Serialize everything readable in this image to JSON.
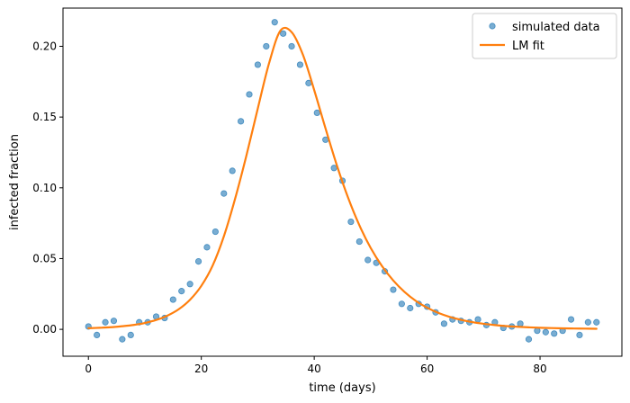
{
  "chart_data": {
    "type": "scatter",
    "xlabel": "time (days)",
    "ylabel": "infected fraction",
    "xlim": [
      -4.5,
      94.5
    ],
    "ylim": [
      -0.019,
      0.227
    ],
    "xticks": [
      0,
      20,
      40,
      60,
      80
    ],
    "yticks": [
      0.0,
      0.05,
      0.1,
      0.15,
      0.2
    ],
    "ytick_labels": [
      "0.00",
      "0.05",
      "0.10",
      "0.15",
      "0.20"
    ],
    "legend_position": "upper right",
    "grid": false,
    "colors": {
      "scatter": "#1f77b4",
      "fit": "#ff7f0e"
    },
    "series": [
      {
        "name": "simulated data",
        "kind": "scatter",
        "x": [
          0.0,
          1.5,
          3.0,
          4.5,
          6.0,
          7.5,
          9.0,
          10.5,
          12.0,
          13.5,
          15.0,
          16.5,
          18.0,
          19.5,
          21.0,
          22.5,
          24.0,
          25.5,
          27.0,
          28.5,
          30.0,
          31.5,
          33.0,
          34.5,
          36.0,
          37.5,
          39.0,
          40.5,
          42.0,
          43.5,
          45.0,
          46.5,
          48.0,
          49.5,
          51.0,
          52.5,
          54.0,
          55.5,
          57.0,
          58.5,
          60.0,
          61.5,
          63.0,
          64.5,
          66.0,
          67.5,
          69.0,
          70.5,
          72.0,
          73.5,
          75.0,
          76.5,
          78.0,
          79.5,
          81.0,
          82.5,
          84.0,
          85.5,
          87.0,
          88.5,
          90.0
        ],
        "y": [
          0.002,
          -0.004,
          0.005,
          0.006,
          -0.007,
          -0.004,
          0.005,
          0.005,
          0.009,
          0.008,
          0.021,
          0.027,
          0.032,
          0.048,
          0.058,
          0.069,
          0.096,
          0.112,
          0.147,
          0.166,
          0.187,
          0.2,
          0.217,
          0.209,
          0.2,
          0.187,
          0.174,
          0.153,
          0.134,
          0.114,
          0.105,
          0.076,
          0.062,
          0.049,
          0.047,
          0.041,
          0.028,
          0.018,
          0.015,
          0.018,
          0.016,
          0.012,
          0.004,
          0.007,
          0.006,
          0.005,
          0.007,
          0.003,
          0.005,
          0.001,
          0.002,
          0.004,
          -0.007,
          -0.001,
          -0.002,
          -0.003,
          -0.001,
          0.007,
          -0.004,
          0.005,
          0.005
        ]
      },
      {
        "name": "LM fit",
        "kind": "line",
        "x": [
          0,
          2,
          4,
          6,
          8,
          10,
          12,
          14,
          16,
          18,
          20,
          22,
          24,
          26,
          28,
          30,
          32,
          34,
          36,
          38,
          40,
          42,
          44,
          46,
          48,
          50,
          52,
          54,
          56,
          58,
          60,
          62,
          64,
          66,
          68,
          70,
          72,
          74,
          76,
          78,
          80,
          82,
          84,
          86,
          88,
          90
        ],
        "y": [
          0.0008,
          0.0011,
          0.0015,
          0.0022,
          0.0031,
          0.0045,
          0.0066,
          0.0097,
          0.0142,
          0.0209,
          0.0307,
          0.045,
          0.0658,
          0.0925,
          0.123,
          0.156,
          0.188,
          0.211,
          0.21,
          0.194,
          0.169,
          0.142,
          0.116,
          0.093,
          0.0735,
          0.0575,
          0.0447,
          0.0345,
          0.0264,
          0.0201,
          0.0153,
          0.0116,
          0.0088,
          0.0067,
          0.0051,
          0.0039,
          0.003,
          0.0023,
          0.0018,
          0.0014,
          0.0011,
          0.0009,
          0.0007,
          0.0006,
          0.0005,
          0.0004
        ]
      }
    ]
  }
}
